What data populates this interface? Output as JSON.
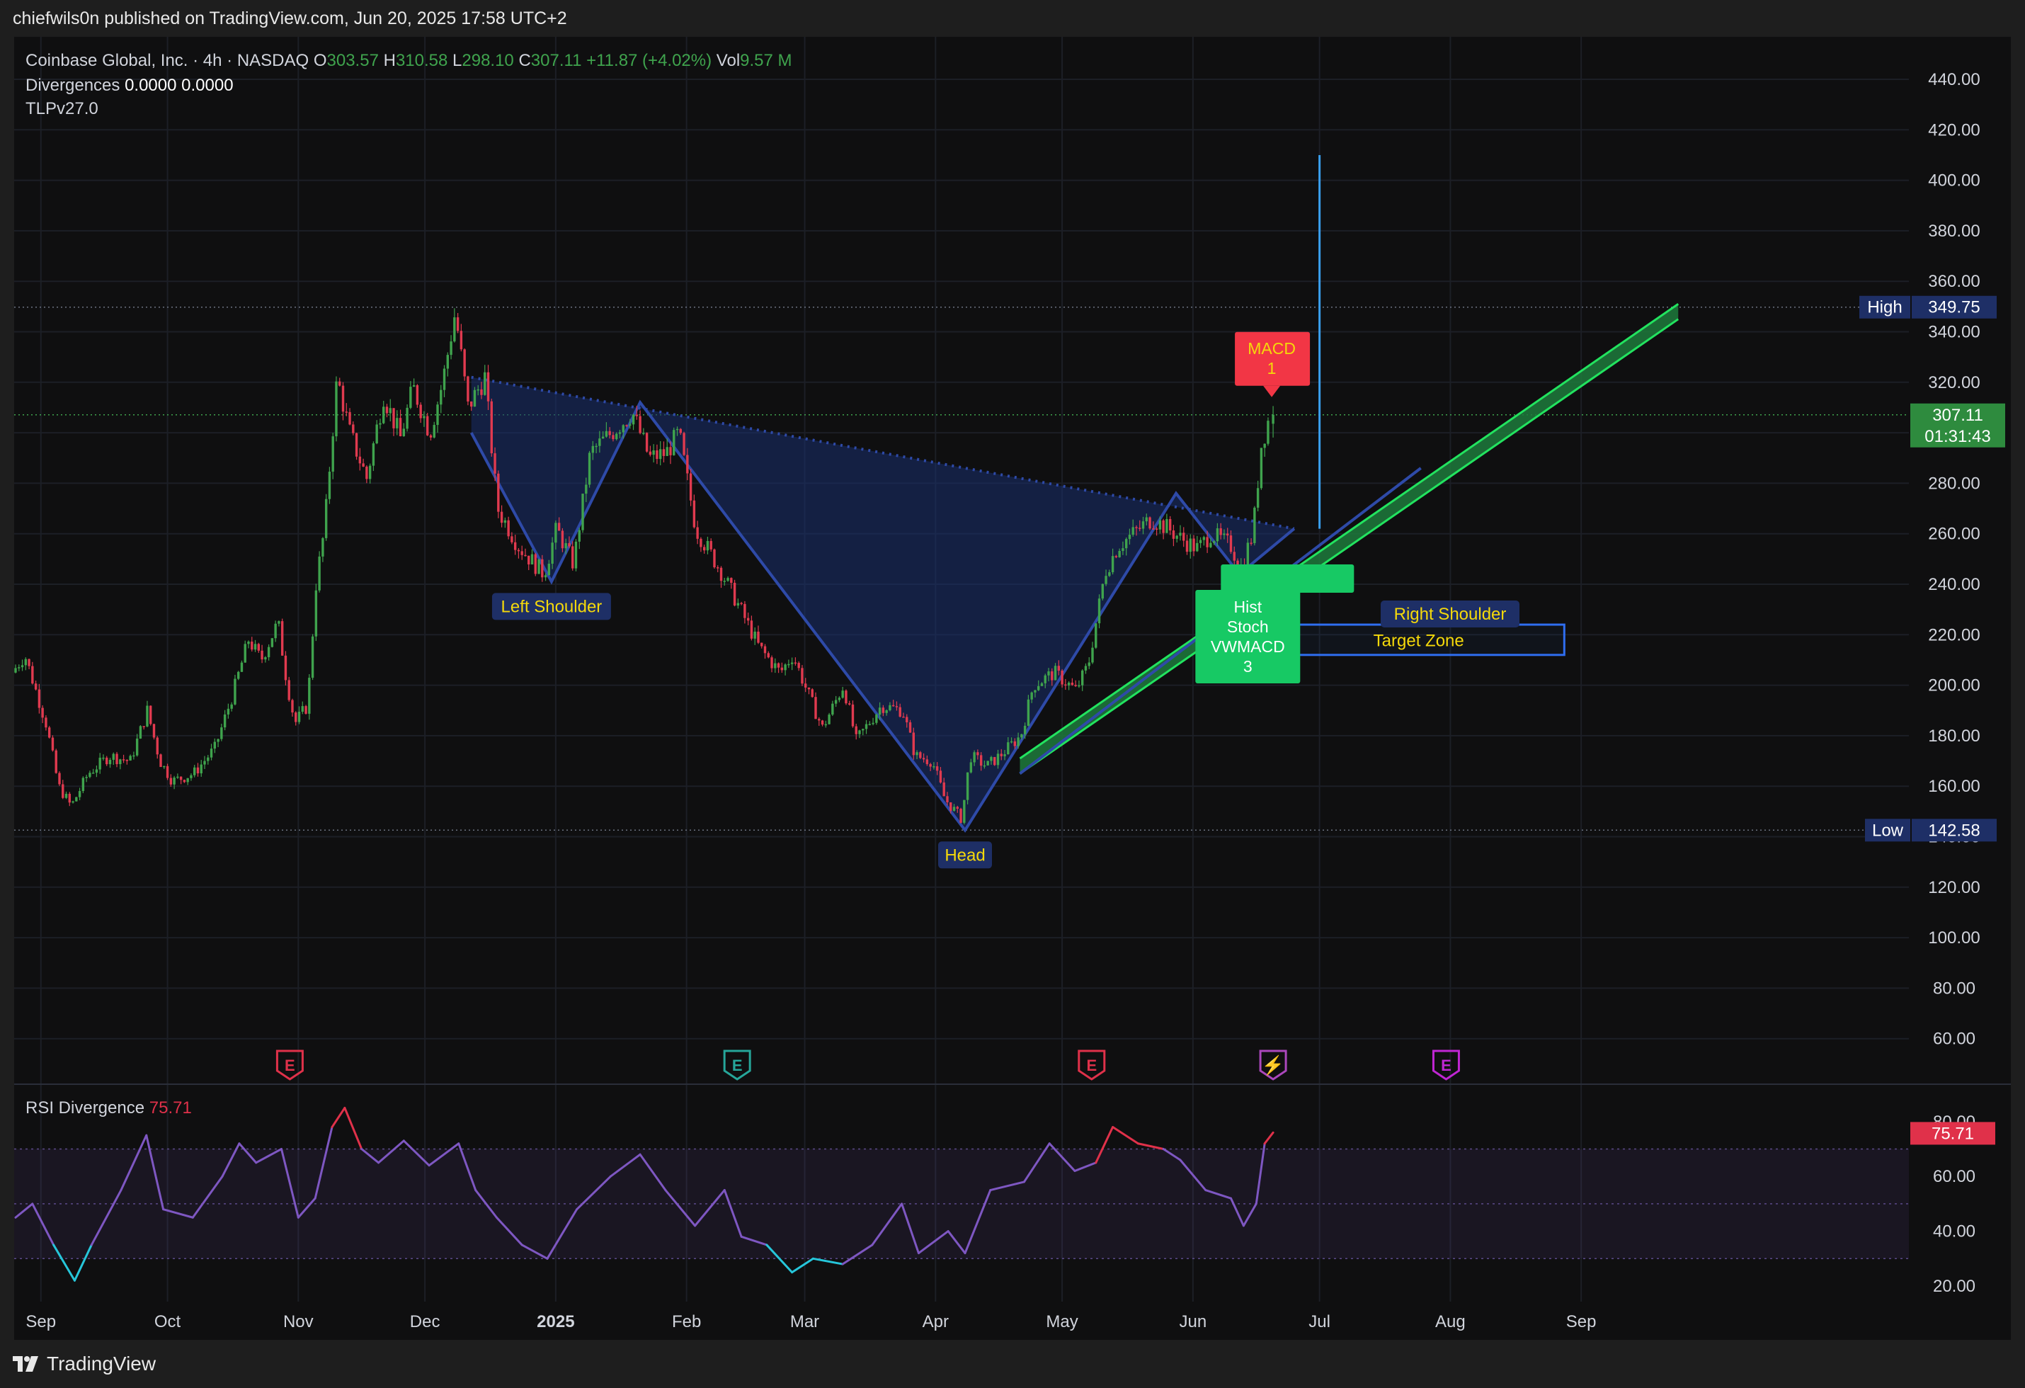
{
  "publisher_line": "chiefwils0n published on TradingView.com, Jun 20, 2025 17:58 UTC+2",
  "footer": {
    "brand": "TradingView",
    "logo_icon": "tradingview-logo-icon"
  },
  "legend": {
    "symbol": "Coinbase Global, Inc. · 4h · NASDAQ",
    "o_label": "O",
    "o_value": "303.57",
    "h_label": "H",
    "h_value": "310.58",
    "l_label": "L",
    "l_value": "298.10",
    "c_label": "C",
    "c_value": "307.11",
    "change": "+11.87 (+4.02%)",
    "vol_label": "Vol",
    "vol_value": "9.57 M",
    "divergences_label": "Divergences",
    "div1": "0.0000",
    "div2": "0.0000",
    "tlp": "TLPv27.0"
  },
  "rsi_legend": {
    "label": "RSI Divergence",
    "value": "75.71"
  },
  "colors": {
    "up": "#3fa34d",
    "down": "#e03a4f",
    "rsi": "#7e57c2",
    "rsi_hot": "#e0314a",
    "rsi_cold": "#26c6da",
    "pattern_fill": "#1a2f6e",
    "pattern_line": "#2e4aa8",
    "channel": "#22e35f",
    "target": "#2f6ef0",
    "vline": "#3aa0f0"
  },
  "chart_data": [
    {
      "type": "candlestick",
      "title": "Coinbase Global, Inc. · 4h · NASDAQ",
      "ylim": [
        50,
        450
      ],
      "y_ticks": [
        "440.00",
        "420.00",
        "400.00",
        "380.00",
        "360.00",
        "340.00",
        "320.00",
        "300.00",
        "280.00",
        "260.00",
        "240.00",
        "220.00",
        "200.00",
        "180.00",
        "160.00",
        "140.00",
        "120.00",
        "100.00",
        "80.00",
        "60.00"
      ],
      "x_ticks": [
        "Sep",
        "Oct",
        "Nov",
        "Dec",
        "2025",
        "Feb",
        "Mar",
        "Apr",
        "May",
        "Jun",
        "Jul",
        "Aug",
        "Sep"
      ],
      "high": {
        "label": "High",
        "value": "349.75"
      },
      "low": {
        "label": "Low",
        "value": "142.58"
      },
      "last": {
        "value": "307.11",
        "countdown": "01:31:43"
      },
      "price_path": [
        [
          "2024-08-26",
          205
        ],
        [
          "2024-08-29",
          212
        ],
        [
          "2024-09-03",
          185
        ],
        [
          "2024-09-06",
          160
        ],
        [
          "2024-09-09",
          152
        ],
        [
          "2024-09-13",
          165
        ],
        [
          "2024-09-18",
          172
        ],
        [
          "2024-09-23",
          170
        ],
        [
          "2024-09-27",
          190
        ],
        [
          "2024-09-30",
          170
        ],
        [
          "2024-10-03",
          162
        ],
        [
          "2024-10-08",
          165
        ],
        [
          "2024-10-13",
          175
        ],
        [
          "2024-10-17",
          195
        ],
        [
          "2024-10-21",
          218
        ],
        [
          "2024-10-24",
          210
        ],
        [
          "2024-10-28",
          225
        ],
        [
          "2024-10-30",
          202
        ],
        [
          "2024-11-01",
          185
        ],
        [
          "2024-11-04",
          192
        ],
        [
          "2024-11-06",
          240
        ],
        [
          "2024-11-08",
          262
        ],
        [
          "2024-11-11",
          322
        ],
        [
          "2024-11-14",
          300
        ],
        [
          "2024-11-18",
          282
        ],
        [
          "2024-11-22",
          315
        ],
        [
          "2024-11-26",
          298
        ],
        [
          "2024-11-29",
          318
        ],
        [
          "2024-12-03",
          300
        ],
        [
          "2024-12-06",
          320
        ],
        [
          "2024-12-09",
          348
        ],
        [
          "2024-12-12",
          310
        ],
        [
          "2024-12-16",
          322
        ],
        [
          "2024-12-19",
          270
        ],
        [
          "2024-12-24",
          255
        ],
        [
          "2024-12-30",
          244
        ],
        [
          "2025-01-02",
          262
        ],
        [
          "2025-01-06",
          248
        ],
        [
          "2025-01-10",
          292
        ],
        [
          "2025-01-15",
          300
        ],
        [
          "2025-01-20",
          308
        ],
        [
          "2025-01-24",
          290
        ],
        [
          "2025-01-28",
          292
        ],
        [
          "2025-01-31",
          300
        ],
        [
          "2025-02-04",
          262
        ],
        [
          "2025-02-10",
          245
        ],
        [
          "2025-02-14",
          232
        ],
        [
          "2025-02-19",
          215
        ],
        [
          "2025-02-24",
          205
        ],
        [
          "2025-02-27",
          212
        ],
        [
          "2025-03-03",
          195
        ],
        [
          "2025-03-06",
          183
        ],
        [
          "2025-03-11",
          200
        ],
        [
          "2025-03-14",
          178
        ],
        [
          "2025-03-20",
          192
        ],
        [
          "2025-03-25",
          190
        ],
        [
          "2025-03-28",
          172
        ],
        [
          "2025-04-01",
          170
        ],
        [
          "2025-04-04",
          155
        ],
        [
          "2025-04-08",
          147
        ],
        [
          "2025-04-10",
          172
        ],
        [
          "2025-04-14",
          168
        ],
        [
          "2025-04-17",
          172
        ],
        [
          "2025-04-22",
          180
        ],
        [
          "2025-04-25",
          200
        ],
        [
          "2025-04-30",
          205
        ],
        [
          "2025-05-05",
          198
        ],
        [
          "2025-05-08",
          208
        ],
        [
          "2025-05-12",
          245
        ],
        [
          "2025-05-15",
          255
        ],
        [
          "2025-05-20",
          262
        ],
        [
          "2025-05-23",
          266
        ],
        [
          "2025-05-27",
          262
        ],
        [
          "2025-05-30",
          258
        ],
        [
          "2025-06-03",
          254
        ],
        [
          "2025-06-06",
          260
        ],
        [
          "2025-06-11",
          255
        ],
        [
          "2025-06-13",
          246
        ],
        [
          "2025-06-16",
          260
        ],
        [
          "2025-06-18",
          295
        ],
        [
          "2025-06-20",
          307
        ]
      ],
      "last_ohlc": {
        "open": 303.57,
        "high": 310.58,
        "low": 298.1,
        "close": 307.11
      },
      "annotations": {
        "left_shoulder": {
          "label": "Left Shoulder",
          "date": "2024-12-31",
          "price": 241
        },
        "head": {
          "label": "Head",
          "date": "2025-04-08",
          "price": 142.58
        },
        "right_shoulder_label": "Right Shoulder",
        "pattern_points": [
          [
            "2024-12-12",
            300
          ],
          [
            "2024-12-31",
            241
          ],
          [
            "2025-01-21",
            312
          ],
          [
            "2025-04-08",
            142.58
          ],
          [
            "2025-05-28",
            276
          ],
          [
            "2025-06-12",
            244
          ],
          [
            "2025-06-25",
            262
          ]
        ],
        "neckline": [
          [
            "2024-12-12",
            322
          ],
          [
            "2025-06-25",
            262
          ]
        ],
        "trendline": [
          [
            "2025-04-21",
            165
          ],
          [
            "2025-07-25",
            286
          ]
        ],
        "channel": {
          "lower": [
            [
              "2025-04-21",
              165
            ],
            [
              "2025-09-24",
              345
            ]
          ],
          "upper": [
            [
              "2025-04-21",
              171
            ],
            [
              "2025-09-24",
              351
            ]
          ]
        },
        "target_zone": {
          "label": "Target Zone",
          "start": "2025-06-20",
          "end": "2025-08-28",
          "low": 212,
          "high": 224
        },
        "projection_line": {
          "date": "2025-07-01",
          "from": 262,
          "to": 410
        },
        "macd_badge": {
          "title": "MACD",
          "count": "1",
          "date": "2025-06-20",
          "price": 313
        },
        "bull_badge": {
          "lines": [
            "Hist",
            "Stoch",
            "VWMACD"
          ],
          "count": "3",
          "date": "2025-06-14",
          "price": 240
        },
        "earnings": [
          {
            "date": "2024-10-30",
            "label": "E",
            "color": "#e0314a"
          },
          {
            "date": "2025-02-13",
            "label": "E",
            "color": "#26a69a"
          },
          {
            "date": "2025-05-08",
            "label": "E",
            "color": "#e0314a"
          },
          {
            "date": "2025-06-20",
            "label": "",
            "color": "#ab47bc"
          },
          {
            "date": "2025-07-31",
            "label": "E",
            "color": "#c026d3"
          }
        ]
      }
    },
    {
      "type": "line",
      "title": "RSI Divergence",
      "ylim": [
        15,
        85
      ],
      "y_ticks": [
        "80.00",
        "60.00",
        "40.00",
        "20.00"
      ],
      "bands": [
        30,
        50,
        70
      ],
      "last_value": "75.71",
      "series": [
        {
          "name": "RSI Divergence",
          "points": [
            [
              "2024-08-26",
              45
            ],
            [
              "2024-08-30",
              50
            ],
            [
              "2024-09-04",
              35
            ],
            [
              "2024-09-09",
              22
            ],
            [
              "2024-09-13",
              35
            ],
            [
              "2024-09-20",
              55
            ],
            [
              "2024-09-26",
              75
            ],
            [
              "2024-09-30",
              48
            ],
            [
              "2024-10-07",
              45
            ],
            [
              "2024-10-14",
              60
            ],
            [
              "2024-10-18",
              72
            ],
            [
              "2024-10-22",
              65
            ],
            [
              "2024-10-28",
              70
            ],
            [
              "2024-11-01",
              45
            ],
            [
              "2024-11-05",
              52
            ],
            [
              "2024-11-09",
              78
            ],
            [
              "2024-11-12",
              85
            ],
            [
              "2024-11-16",
              70
            ],
            [
              "2024-11-20",
              65
            ],
            [
              "2024-11-26",
              73
            ],
            [
              "2024-12-02",
              64
            ],
            [
              "2024-12-09",
              72
            ],
            [
              "2024-12-13",
              55
            ],
            [
              "2024-12-18",
              45
            ],
            [
              "2024-12-24",
              35
            ],
            [
              "2024-12-30",
              30
            ],
            [
              "2025-01-06",
              48
            ],
            [
              "2025-01-14",
              60
            ],
            [
              "2025-01-21",
              68
            ],
            [
              "2025-01-27",
              55
            ],
            [
              "2025-02-03",
              42
            ],
            [
              "2025-02-10",
              55
            ],
            [
              "2025-02-14",
              38
            ],
            [
              "2025-02-20",
              35
            ],
            [
              "2025-02-26",
              25
            ],
            [
              "2025-03-03",
              30
            ],
            [
              "2025-03-10",
              28
            ],
            [
              "2025-03-17",
              35
            ],
            [
              "2025-03-24",
              50
            ],
            [
              "2025-03-28",
              32
            ],
            [
              "2025-04-04",
              40
            ],
            [
              "2025-04-08",
              32
            ],
            [
              "2025-04-14",
              55
            ],
            [
              "2025-04-22",
              58
            ],
            [
              "2025-04-28",
              72
            ],
            [
              "2025-05-04",
              62
            ],
            [
              "2025-05-09",
              65
            ],
            [
              "2025-05-13",
              78
            ],
            [
              "2025-05-19",
              72
            ],
            [
              "2025-05-25",
              70
            ],
            [
              "2025-05-29",
              66
            ],
            [
              "2025-06-04",
              55
            ],
            [
              "2025-06-10",
              52
            ],
            [
              "2025-06-13",
              42
            ],
            [
              "2025-06-16",
              50
            ],
            [
              "2025-06-18",
              72
            ],
            [
              "2025-06-20",
              76
            ]
          ]
        }
      ]
    }
  ]
}
